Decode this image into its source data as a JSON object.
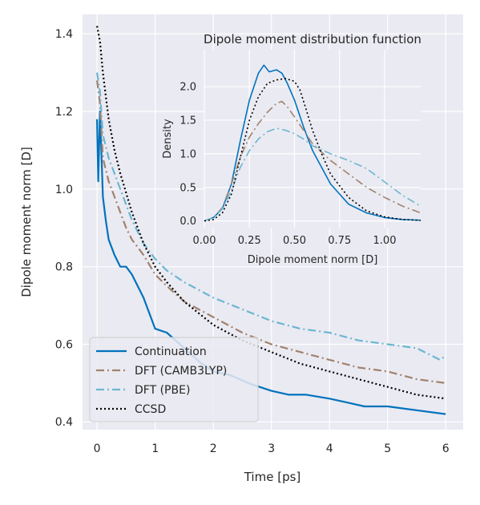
{
  "chart_data": [
    {
      "type": "line",
      "xlabel": "Time [ps]",
      "ylabel": "Dipole moment norm [D]",
      "xlim": [
        -0.25,
        6.3
      ],
      "ylim": [
        0.38,
        1.45
      ],
      "xticks": [
        "0",
        "1",
        "2",
        "3",
        "4",
        "5",
        "6"
      ],
      "yticks": [
        "0.4",
        "0.6",
        "0.8",
        "1.0",
        "1.2",
        "1.4"
      ],
      "grid": true,
      "legend_position": "lower-left",
      "series": [
        {
          "name": "Continuation",
          "color": "#0072bd",
          "style": "solid",
          "x": [
            0.0,
            0.02,
            0.05,
            0.1,
            0.15,
            0.2,
            0.3,
            0.4,
            0.5,
            0.6,
            0.8,
            1.0,
            1.2,
            1.5,
            1.8,
            2.0,
            2.3,
            2.6,
            3.0,
            3.3,
            3.6,
            4.0,
            4.3,
            4.6,
            5.0,
            5.5,
            6.0
          ],
          "y": [
            1.18,
            1.02,
            1.2,
            0.98,
            0.92,
            0.87,
            0.83,
            0.8,
            0.8,
            0.78,
            0.72,
            0.64,
            0.63,
            0.59,
            0.55,
            0.53,
            0.52,
            0.5,
            0.48,
            0.47,
            0.47,
            0.46,
            0.45,
            0.44,
            0.44,
            0.43,
            0.42
          ]
        },
        {
          "name": "DFT (CAMB3LYP)",
          "color": "#a0826d",
          "style": "dashdot",
          "x": [
            0.0,
            0.05,
            0.1,
            0.2,
            0.3,
            0.4,
            0.5,
            0.6,
            0.8,
            1.0,
            1.2,
            1.5,
            2.0,
            2.5,
            3.0,
            3.5,
            4.0,
            4.5,
            5.0,
            5.5,
            6.0
          ],
          "y": [
            1.28,
            1.22,
            1.08,
            1.02,
            0.98,
            0.94,
            0.9,
            0.87,
            0.83,
            0.78,
            0.75,
            0.71,
            0.67,
            0.63,
            0.6,
            0.58,
            0.56,
            0.54,
            0.53,
            0.51,
            0.5
          ]
        },
        {
          "name": "DFT (PBE)",
          "color": "#6bb7d1",
          "style": "dashdot",
          "x": [
            0.0,
            0.05,
            0.1,
            0.2,
            0.3,
            0.4,
            0.5,
            0.6,
            0.8,
            1.0,
            1.2,
            1.5,
            2.0,
            2.5,
            3.0,
            3.5,
            4.0,
            4.5,
            5.0,
            5.5,
            5.9,
            6.0
          ],
          "y": [
            1.3,
            1.25,
            1.14,
            1.08,
            1.04,
            1.0,
            0.96,
            0.92,
            0.86,
            0.82,
            0.79,
            0.76,
            0.72,
            0.69,
            0.66,
            0.64,
            0.63,
            0.61,
            0.6,
            0.59,
            0.56,
            0.57
          ]
        },
        {
          "name": "CCSD",
          "color": "#000000",
          "style": "dotted",
          "x": [
            0.0,
            0.05,
            0.1,
            0.2,
            0.3,
            0.4,
            0.5,
            0.6,
            0.8,
            1.0,
            1.2,
            1.5,
            2.0,
            2.5,
            3.0,
            3.5,
            4.0,
            4.5,
            5.0,
            5.5,
            6.0
          ],
          "y": [
            1.42,
            1.38,
            1.3,
            1.18,
            1.1,
            1.04,
            0.99,
            0.94,
            0.86,
            0.8,
            0.76,
            0.71,
            0.65,
            0.61,
            0.58,
            0.55,
            0.53,
            0.51,
            0.49,
            0.47,
            0.46
          ]
        }
      ]
    },
    {
      "type": "line",
      "title": "Dipole moment distribution function",
      "xlabel": "Dipole moment norm [D]",
      "ylabel": "Density",
      "xlim": [
        0.0,
        1.2
      ],
      "ylim": [
        -0.1,
        2.55
      ],
      "xticks": [
        "0.00",
        "0.25",
        "0.50",
        "0.75",
        "1.00"
      ],
      "yticks": [
        "0.0",
        "0.5",
        "1.0",
        "1.5",
        "2.0"
      ],
      "grid": true,
      "series": [
        {
          "color": "#0072bd",
          "style": "solid",
          "x": [
            0.0,
            0.05,
            0.1,
            0.15,
            0.2,
            0.25,
            0.3,
            0.33,
            0.36,
            0.4,
            0.43,
            0.46,
            0.5,
            0.55,
            0.6,
            0.7,
            0.8,
            0.9,
            1.0,
            1.1,
            1.2
          ],
          "y": [
            0.0,
            0.05,
            0.18,
            0.55,
            1.2,
            1.8,
            2.2,
            2.32,
            2.22,
            2.25,
            2.2,
            2.05,
            1.8,
            1.4,
            1.05,
            0.55,
            0.25,
            0.12,
            0.05,
            0.02,
            0.01
          ]
        },
        {
          "color": "#a0826d",
          "style": "dashdot",
          "x": [
            0.0,
            0.05,
            0.1,
            0.15,
            0.2,
            0.25,
            0.3,
            0.35,
            0.4,
            0.43,
            0.46,
            0.5,
            0.55,
            0.6,
            0.7,
            0.8,
            0.9,
            1.0,
            1.1,
            1.2
          ],
          "y": [
            0.0,
            0.05,
            0.2,
            0.55,
            0.95,
            1.25,
            1.45,
            1.62,
            1.75,
            1.78,
            1.7,
            1.55,
            1.35,
            1.15,
            0.9,
            0.7,
            0.5,
            0.35,
            0.22,
            0.12
          ]
        },
        {
          "color": "#6bb7d1",
          "style": "dashdot",
          "x": [
            0.0,
            0.05,
            0.1,
            0.15,
            0.2,
            0.25,
            0.3,
            0.35,
            0.4,
            0.45,
            0.5,
            0.55,
            0.6,
            0.7,
            0.8,
            0.9,
            1.0,
            1.1,
            1.2
          ],
          "y": [
            0.0,
            0.05,
            0.18,
            0.45,
            0.8,
            1.05,
            1.22,
            1.33,
            1.38,
            1.35,
            1.3,
            1.22,
            1.12,
            1.0,
            0.9,
            0.78,
            0.58,
            0.38,
            0.22
          ]
        },
        {
          "color": "#000000",
          "style": "dotted",
          "x": [
            0.0,
            0.05,
            0.1,
            0.15,
            0.2,
            0.25,
            0.3,
            0.35,
            0.4,
            0.45,
            0.5,
            0.53,
            0.56,
            0.6,
            0.65,
            0.7,
            0.8,
            0.9,
            1.0,
            1.1,
            1.2
          ],
          "y": [
            0.0,
            0.02,
            0.12,
            0.4,
            0.95,
            1.5,
            1.85,
            2.05,
            2.1,
            2.12,
            2.08,
            1.95,
            1.7,
            1.35,
            1.0,
            0.7,
            0.35,
            0.15,
            0.06,
            0.02,
            0.01
          ]
        }
      ]
    }
  ]
}
